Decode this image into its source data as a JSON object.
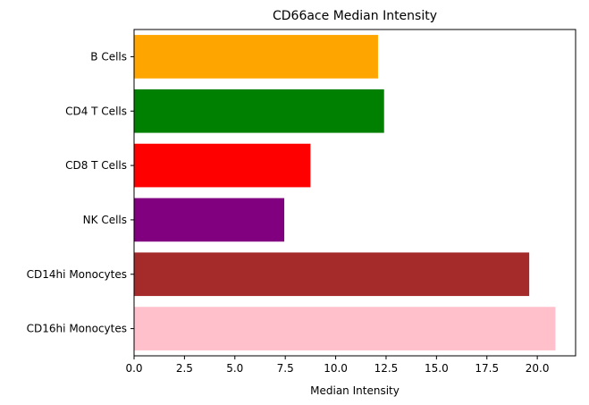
{
  "chart_data": {
    "type": "bar",
    "orientation": "horizontal",
    "title": "CD66ace Median Intensity",
    "xlabel": "Median Intensity",
    "ylabel": "",
    "categories": [
      "B Cells",
      "CD4 T Cells",
      "CD8 T Cells",
      "NK Cells",
      "CD14hi Monocytes",
      "CD16hi Monocytes"
    ],
    "values": [
      12.1,
      12.4,
      8.75,
      7.45,
      19.6,
      20.9
    ],
    "colors": [
      "#ffa500",
      "#008000",
      "#ff0000",
      "#800080",
      "#a52a2a",
      "#ffc0cb"
    ],
    "xlim": [
      0,
      21.9
    ],
    "xticks": [
      0.0,
      2.5,
      5.0,
      7.5,
      10.0,
      12.5,
      15.0,
      17.5,
      20.0
    ],
    "xtick_labels": [
      "0.0",
      "2.5",
      "5.0",
      "7.5",
      "10.0",
      "12.5",
      "15.0",
      "17.5",
      "20.0"
    ],
    "grid": false,
    "legend": "none"
  }
}
